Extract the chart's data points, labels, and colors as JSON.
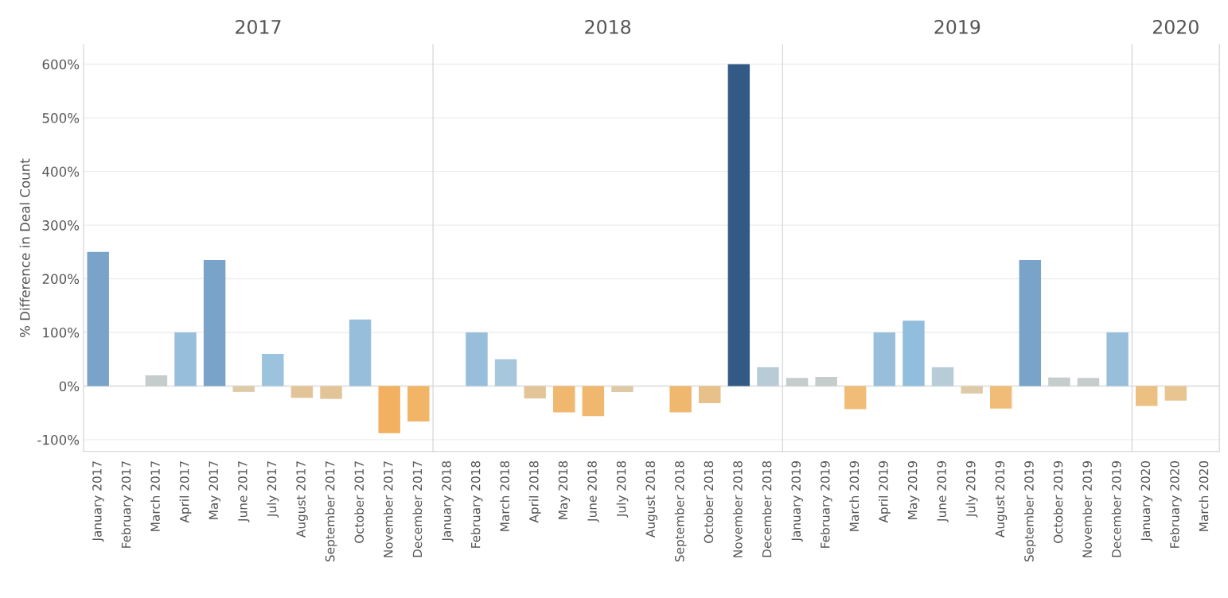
{
  "chart_data": [
    {
      "type": "bar",
      "title": "2017",
      "ylabel": "% Difference in Deal Count",
      "grid": "y",
      "categories": [
        "January 2017",
        "February 2017",
        "March 2017",
        "April 2017",
        "May 2017",
        "June 2017",
        "July 2017",
        "August 2017",
        "September 2017",
        "October 2017",
        "November 2017",
        "December 2017"
      ],
      "values": [
        250,
        0,
        20,
        100,
        235,
        -11,
        60,
        -22,
        -24,
        124,
        -88,
        -66
      ],
      "colors": [
        "#7aa3c9",
        "#c4cccc",
        "#c4cccc",
        "#97bfdc",
        "#7aa3c9",
        "#dfcaa8",
        "#9cc3de",
        "#e3c499",
        "#e3c499",
        "#97bfdc",
        "#f2b061",
        "#f2b466"
      ],
      "ylim": [
        -122,
        636
      ],
      "yticks": [
        {
          "value": -100,
          "label": "-100%"
        },
        {
          "value": 0,
          "label": "0%"
        },
        {
          "value": 100,
          "label": "100%"
        },
        {
          "value": 200,
          "label": "200%"
        },
        {
          "value": 300,
          "label": "300%"
        },
        {
          "value": 400,
          "label": "400%"
        },
        {
          "value": 500,
          "label": "500%"
        },
        {
          "value": 600,
          "label": "600%"
        }
      ]
    },
    {
      "type": "bar",
      "title": "2018",
      "grid": "y",
      "tick_labels": "x",
      "categories": [
        "January 2018",
        "February 2018",
        "March 2018",
        "April 2018",
        "May 2018",
        "June 2018",
        "July 2018",
        "August 2018",
        "September 2018",
        "October 2018",
        "November 2018",
        "December 2018"
      ],
      "values": [
        0,
        100,
        50,
        -23,
        -49,
        -56,
        -11,
        0,
        -49,
        -32,
        600,
        35
      ],
      "colors": [
        "#c4cccc",
        "#97bfdc",
        "#a7c7dc",
        "#e3c499",
        "#f0b86e",
        "#f0b86e",
        "#dfcaa8",
        "#c4cccc",
        "#f0b86e",
        "#e8c08a",
        "#335a85",
        "#b8ccd8"
      ],
      "ylim": [
        -122,
        636
      ],
      "yticks": [
        {
          "value": -100,
          "label": null
        },
        {
          "value": 0,
          "label": null
        },
        {
          "value": 100,
          "label": null
        },
        {
          "value": 200,
          "label": null
        },
        {
          "value": 300,
          "label": null
        },
        {
          "value": 400,
          "label": null
        },
        {
          "value": 500,
          "label": null
        },
        {
          "value": 600,
          "label": null
        }
      ]
    },
    {
      "type": "bar",
      "title": "2019",
      "grid": "y",
      "tick_labels": "x",
      "categories": [
        "January 2019",
        "February 2019",
        "March 2019",
        "April 2019",
        "May 2019",
        "June 2019",
        "July 2019",
        "August 2019",
        "September 2019",
        "October 2019",
        "November 2019",
        "December 2019"
      ],
      "values": [
        15,
        17,
        -43,
        100,
        122,
        35,
        -14,
        -42,
        235,
        16,
        15,
        100
      ],
      "colors": [
        "#c4cccc",
        "#c4cccc",
        "#f0bc78",
        "#97bfdc",
        "#92bedd",
        "#b8ccd8",
        "#dfcaa8",
        "#f0bc78",
        "#7aa3c9",
        "#c4cccc",
        "#c4cccc",
        "#97bfdc"
      ],
      "ylim": [
        -122,
        636
      ],
      "yticks": [
        {
          "value": -100,
          "label": null
        },
        {
          "value": 0,
          "label": null
        },
        {
          "value": 100,
          "label": null
        },
        {
          "value": 200,
          "label": null
        },
        {
          "value": 300,
          "label": null
        },
        {
          "value": 400,
          "label": null
        },
        {
          "value": 500,
          "label": null
        },
        {
          "value": 600,
          "label": null
        }
      ]
    },
    {
      "type": "bar",
      "title": "2020",
      "grid": "y",
      "tick_labels": "x",
      "categories": [
        "January 2020",
        "February 2020",
        "March 2020"
      ],
      "values": [
        -37,
        -27,
        0
      ],
      "colors": [
        "#ecc080",
        "#e8c590",
        "#c4cccc"
      ],
      "ylim": [
        -122,
        636
      ],
      "yticks": [
        {
          "value": -100,
          "label": null
        },
        {
          "value": 0,
          "label": null
        },
        {
          "value": 100,
          "label": null
        },
        {
          "value": 200,
          "label": null
        },
        {
          "value": 300,
          "label": null
        },
        {
          "value": 400,
          "label": null
        },
        {
          "value": 500,
          "label": null
        },
        {
          "value": 600,
          "label": null
        }
      ]
    }
  ]
}
